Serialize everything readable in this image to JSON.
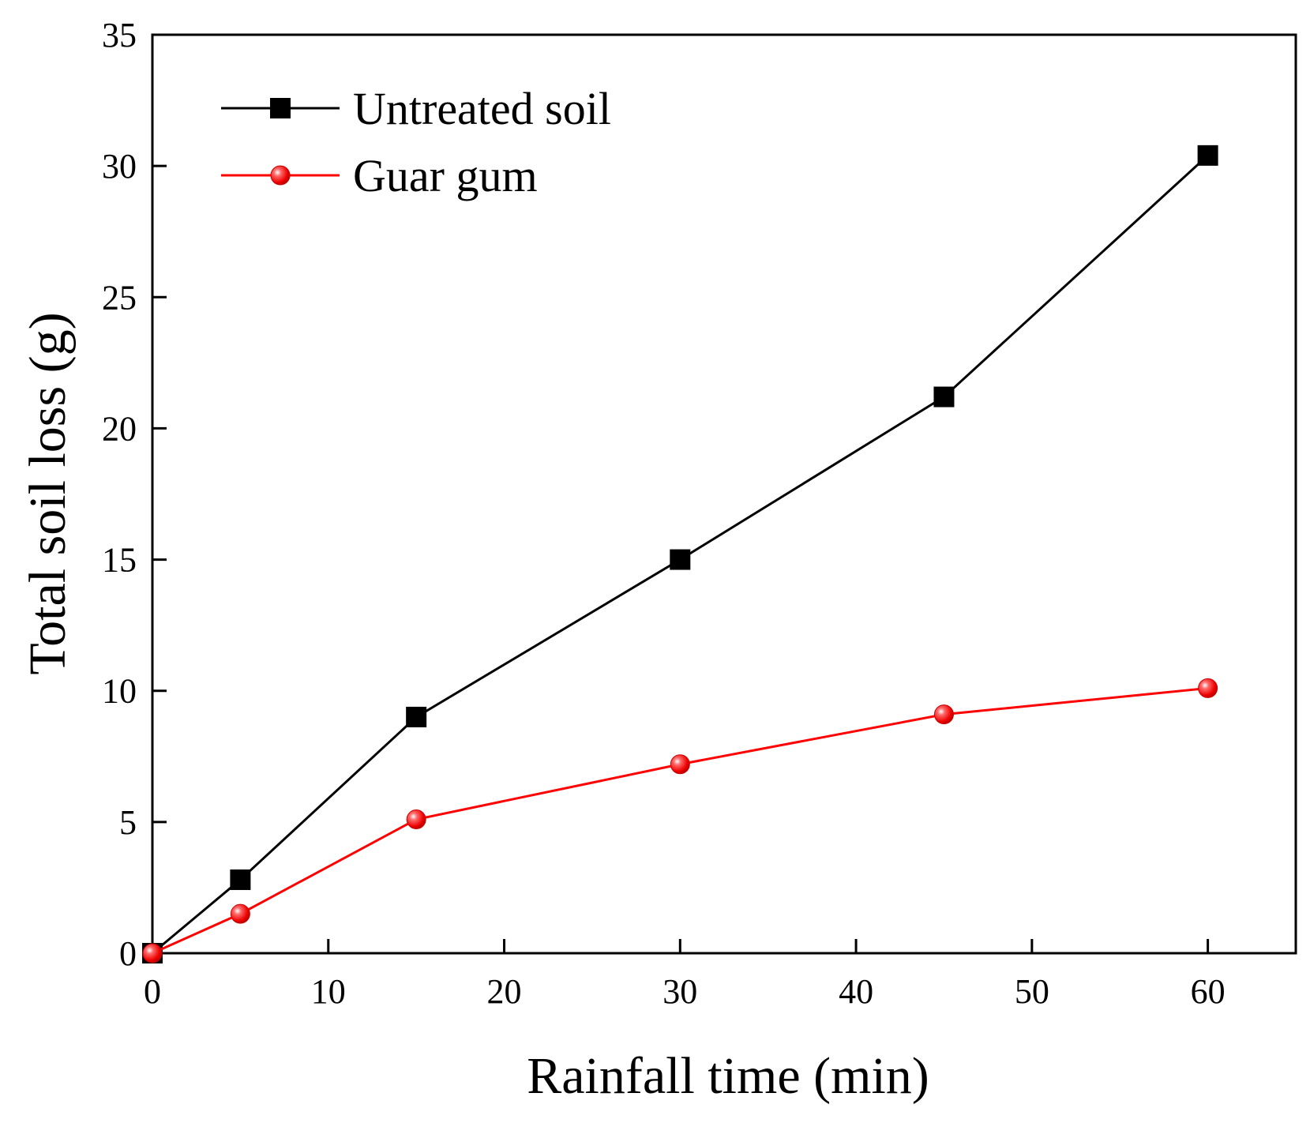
{
  "chart_data": {
    "type": "line",
    "xlabel": "Rainfall time (min)",
    "ylabel": "Total soil loss (g)",
    "xlim": [
      0,
      65
    ],
    "ylim": [
      0,
      35
    ],
    "xticks": [
      0,
      10,
      20,
      30,
      40,
      50,
      60
    ],
    "yticks": [
      0,
      5,
      10,
      15,
      20,
      25,
      30,
      35
    ],
    "grid": false,
    "legend_position": "top-left",
    "series": [
      {
        "name": "Untreated soil",
        "marker": "square",
        "color": "#000000",
        "x": [
          0,
          5,
          15,
          30,
          45,
          60
        ],
        "y": [
          0,
          2.8,
          9.0,
          15.0,
          21.2,
          30.4
        ]
      },
      {
        "name": "Guar gum",
        "marker": "circle",
        "color": "#ff0000",
        "x": [
          0,
          5,
          15,
          30,
          45,
          60
        ],
        "y": [
          0,
          1.5,
          5.1,
          7.2,
          9.1,
          10.1
        ]
      }
    ]
  }
}
